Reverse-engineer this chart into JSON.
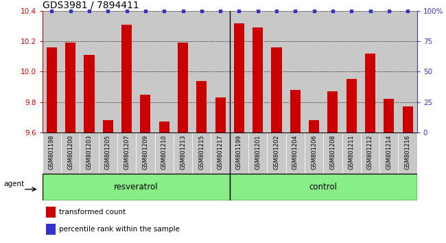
{
  "title": "GDS3981 / 7894411",
  "categories": [
    "GSM801198",
    "GSM801200",
    "GSM801203",
    "GSM801205",
    "GSM801207",
    "GSM801209",
    "GSM801210",
    "GSM801213",
    "GSM801215",
    "GSM801217",
    "GSM801199",
    "GSM801201",
    "GSM801202",
    "GSM801204",
    "GSM801206",
    "GSM801208",
    "GSM801211",
    "GSM801212",
    "GSM801214",
    "GSM801216"
  ],
  "red_values": [
    10.16,
    10.19,
    10.11,
    9.68,
    10.31,
    9.85,
    9.67,
    10.19,
    9.94,
    9.83,
    10.32,
    10.29,
    10.16,
    9.88,
    9.68,
    9.87,
    9.95,
    10.12,
    9.82,
    9.77
  ],
  "blue_values": [
    100,
    100,
    100,
    100,
    100,
    100,
    100,
    100,
    100,
    100,
    100,
    100,
    100,
    100,
    100,
    100,
    100,
    100,
    100,
    100
  ],
  "ylim_left": [
    9.6,
    10.4
  ],
  "ylim_right": [
    0,
    100
  ],
  "yticks_left": [
    9.6,
    9.8,
    10.0,
    10.2,
    10.4
  ],
  "yticks_right": [
    0,
    25,
    50,
    75,
    100
  ],
  "group1_label": "resveratrol",
  "group2_label": "control",
  "group1_count": 10,
  "group2_count": 10,
  "agent_label": "agent",
  "legend1_label": "transformed count",
  "legend2_label": "percentile rank within the sample",
  "bar_color": "#cc0000",
  "dot_color": "#3333cc",
  "bar_baseline": 9.6,
  "background_color": "#c8c8c8",
  "group_bg_color": "#88ee88",
  "title_fontsize": 10,
  "tick_fontsize": 7.5,
  "label_fontsize": 8,
  "bar_width": 0.55
}
